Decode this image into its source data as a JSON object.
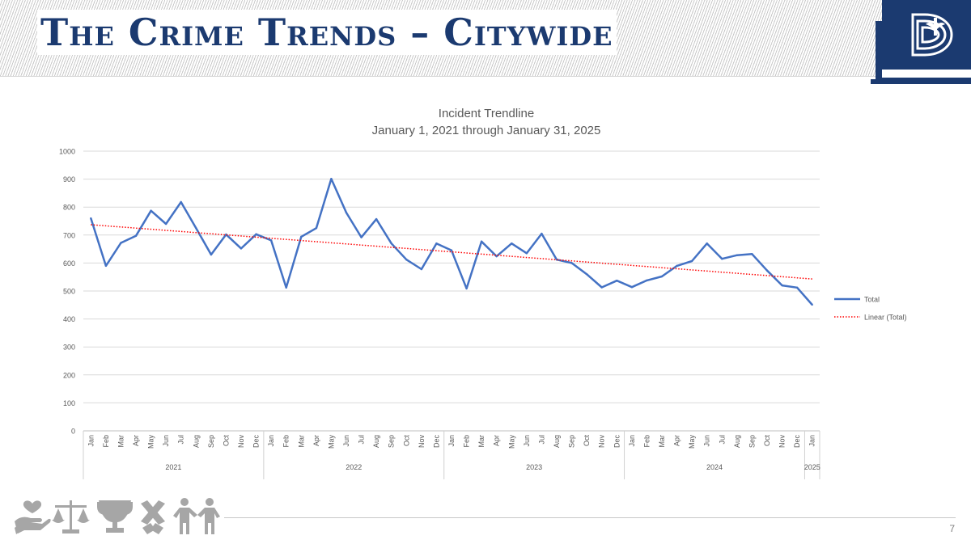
{
  "slide": {
    "title": "The Crime Trends – Citywide",
    "page_number": "7",
    "logo_icon": "city-d-logo-icon",
    "footer_icon_names": [
      "hands-heart-icon",
      "scales-icon",
      "trophy-icon",
      "cross-pattern-icon",
      "people-icon"
    ],
    "colors": {
      "title": "#1b3a70",
      "logo_bg": "#1b3a70",
      "series": "#4472c4",
      "trend": "#ff0000",
      "footer_icons": "#a6a6a6"
    }
  },
  "chart_data": {
    "type": "line",
    "title": "Incident Trendline",
    "subtitle": "January 1, 2021 through January 31, 2025",
    "ylim": [
      0,
      1000
    ],
    "yticks": [
      0,
      100,
      200,
      300,
      400,
      500,
      600,
      700,
      800,
      900,
      1000
    ],
    "grid": true,
    "legend_position": "right",
    "categories": [
      "Jan",
      "Feb",
      "Mar",
      "Apr",
      "May",
      "Jun",
      "Jul",
      "Aug",
      "Sep",
      "Oct",
      "Nov",
      "Dec",
      "Jan",
      "Feb",
      "Mar",
      "Apr",
      "May",
      "Jun",
      "Jul",
      "Aug",
      "Sep",
      "Oct",
      "Nov",
      "Dec",
      "Jan",
      "Feb",
      "Mar",
      "Apr",
      "May",
      "Jun",
      "Jul",
      "Aug",
      "Sep",
      "Oct",
      "Nov",
      "Dec",
      "Jan",
      "Feb",
      "Mar",
      "Apr",
      "May",
      "Jun",
      "Jul",
      "Aug",
      "Sep",
      "Oct",
      "Nov",
      "Dec",
      "Jan"
    ],
    "year_groups": [
      {
        "label": "2021",
        "count": 12
      },
      {
        "label": "2022",
        "count": 12
      },
      {
        "label": "2023",
        "count": 12
      },
      {
        "label": "2024",
        "count": 12
      },
      {
        "label": "2025",
        "count": 1
      }
    ],
    "series": [
      {
        "name": "Total",
        "style": "solid",
        "values": [
          760,
          590,
          672,
          697,
          787,
          740,
          818,
          725,
          630,
          702,
          652,
          703,
          681,
          512,
          694,
          725,
          901,
          780,
          692,
          757,
          670,
          612,
          578,
          670,
          645,
          509,
          677,
          624,
          670,
          635,
          705,
          612,
          600,
          560,
          513,
          537,
          514,
          538,
          552,
          590,
          607,
          670,
          615,
          628,
          632,
          573,
          520,
          512,
          451
        ]
      },
      {
        "name": "Linear (Total)",
        "style": "dotted",
        "trend_start": 737,
        "trend_end": 543
      }
    ]
  }
}
